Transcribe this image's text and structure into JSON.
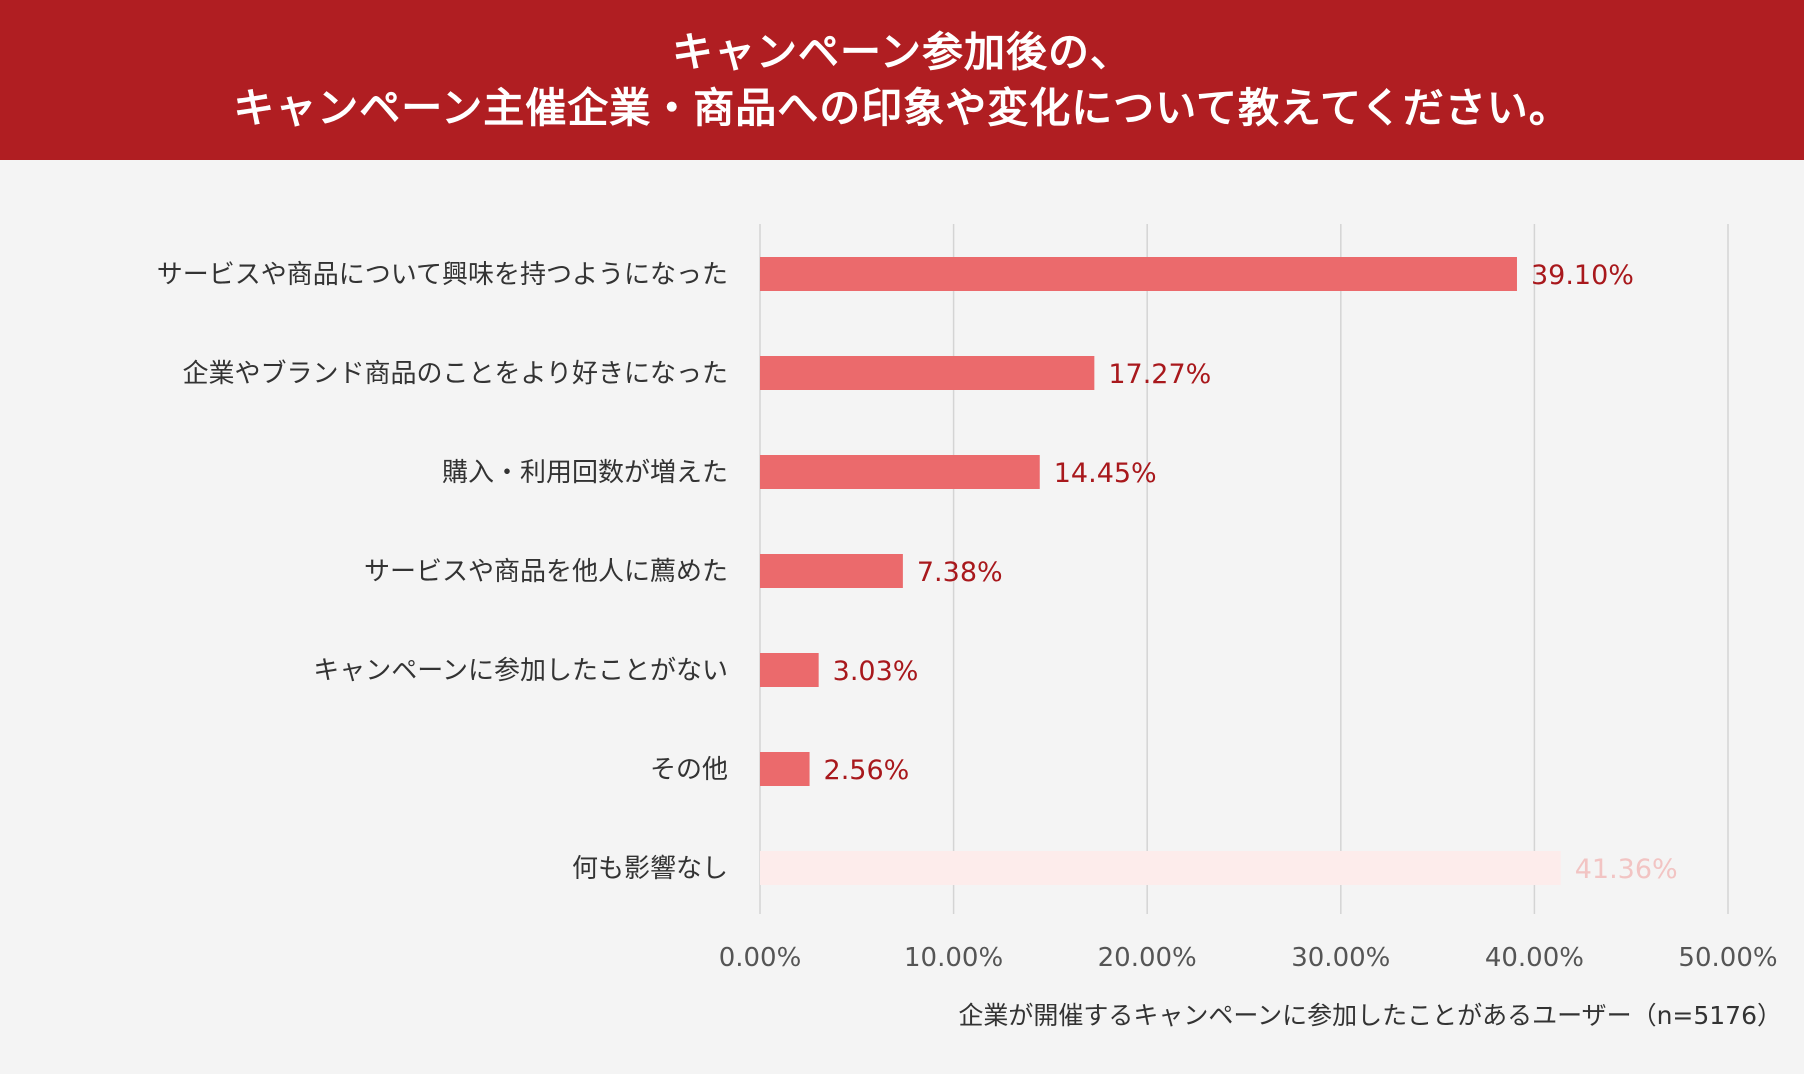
{
  "header": {
    "title_line1": "キャンペーン参加後の、",
    "title_line2": "キャンペーン主催企業・商品への印象や変化について教えてください。"
  },
  "colors": {
    "header_bg": "#b01e22",
    "bar": "#eb6a6c",
    "bar_muted": "#fdeceb",
    "value_text": "#a8181c",
    "value_text_muted": "#f2c4c3",
    "grid": "#d4d4d4"
  },
  "chart_data": {
    "type": "bar",
    "orientation": "horizontal",
    "categories": [
      "サービスや商品について興味を持つようになった",
      "企業やブランド商品のことをより好きになった",
      "購入・利用回数が増えた",
      "サービスや商品を他人に薦めた",
      "キャンペーンに参加したことがない",
      "その他",
      "何も影響なし"
    ],
    "values": [
      39.1,
      17.27,
      14.45,
      7.38,
      3.03,
      2.56,
      41.36
    ],
    "value_labels": [
      "39.10%",
      "17.27%",
      "14.45%",
      "7.38%",
      "3.03%",
      "2.56%",
      "41.36%"
    ],
    "muted": [
      false,
      false,
      false,
      false,
      false,
      false,
      true
    ],
    "xlim": [
      0,
      50
    ],
    "x_ticks": [
      0,
      10,
      20,
      30,
      40,
      50
    ],
    "x_tick_labels": [
      "0.00%",
      "10.00%",
      "20.00%",
      "30.00%",
      "40.00%",
      "50.00%"
    ],
    "grid": true,
    "note": "企業が開催するキャンペーンに参加したことがあるユーザー（n=5176）"
  }
}
